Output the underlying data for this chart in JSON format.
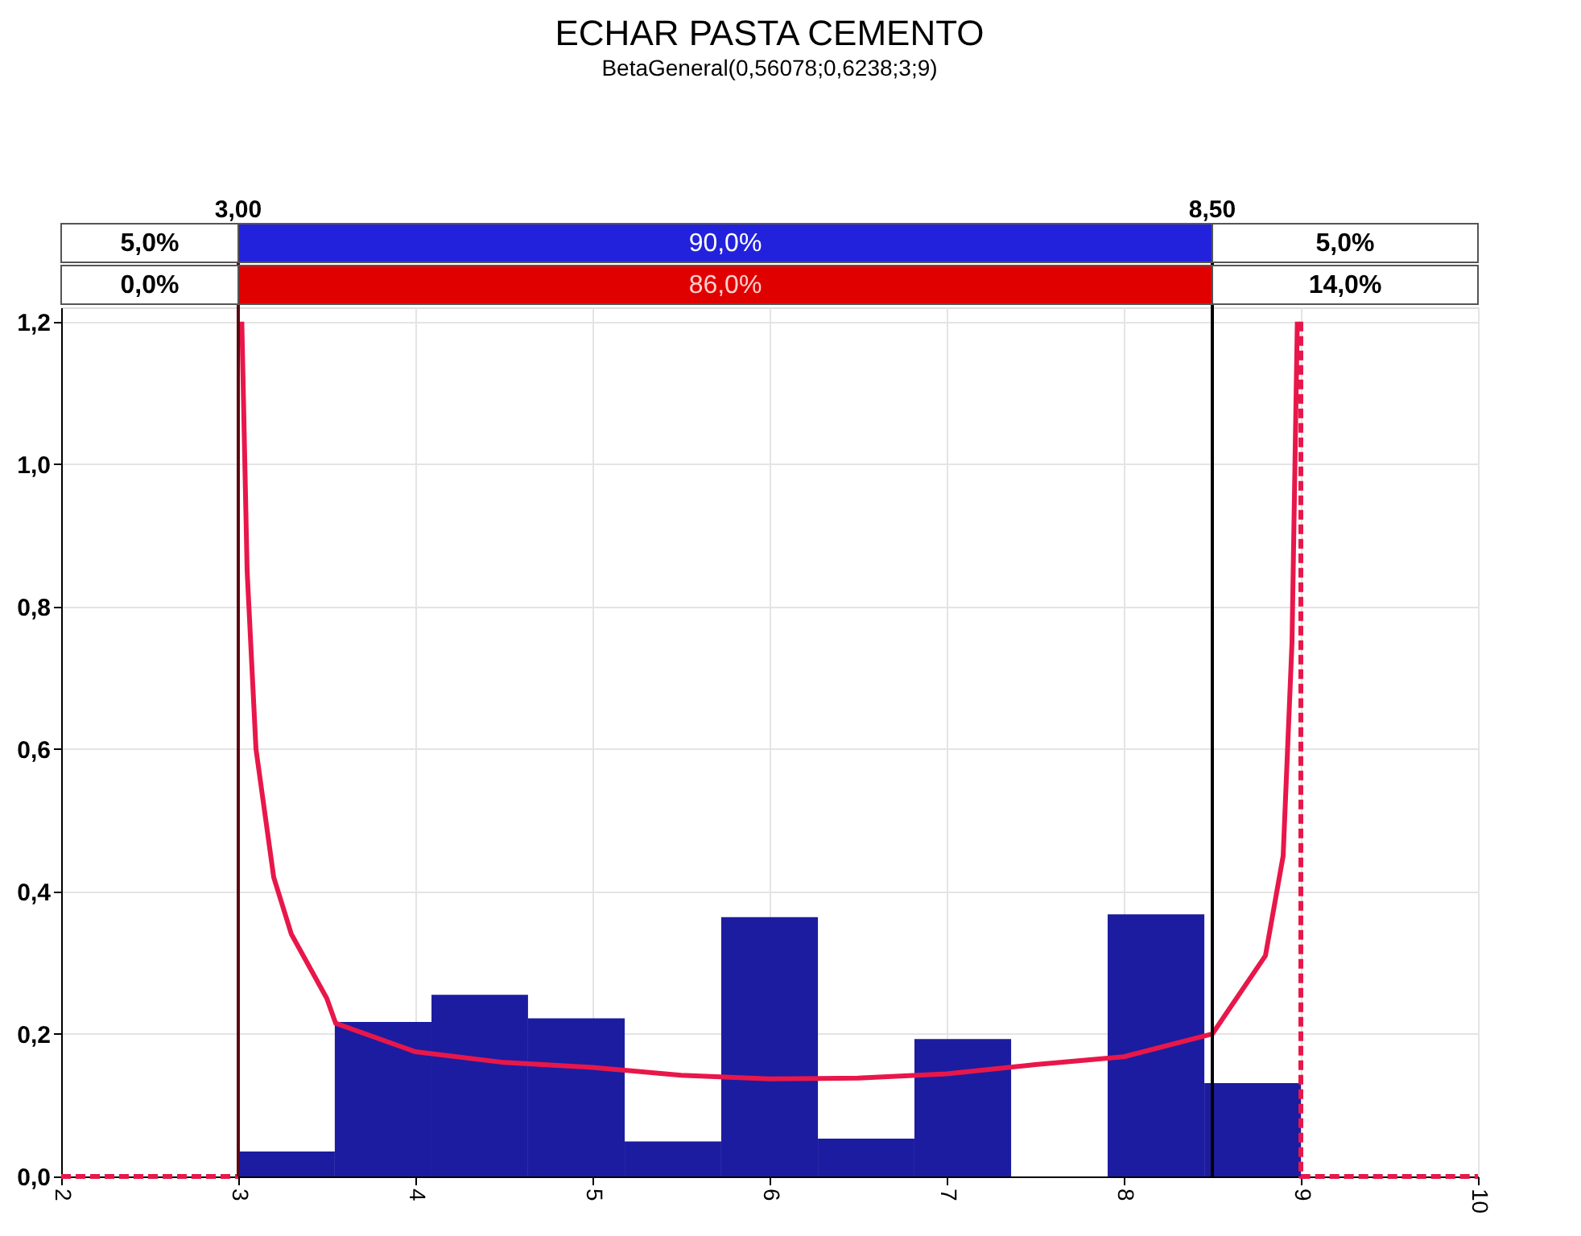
{
  "chart_data": {
    "type": "histogram",
    "title": "ECHAR PASTA CEMENTO",
    "subtitle": "BetaGeneral(0,56078;0,6238;3;9)",
    "bins": [
      3,
      3.545,
      4.091,
      4.636,
      5.182,
      5.727,
      6.273,
      6.818,
      7.364,
      7.909,
      8.455,
      9
    ],
    "values": [
      0.035,
      0.217,
      0.255,
      0.222,
      0.049,
      0.364,
      0.053,
      0.193,
      0,
      0.368,
      0.131
    ],
    "color": "#1c1ca0",
    "series": [
      {
        "type": "line",
        "color": "#e8174a",
        "line_style": "solid",
        "x": [
          3.02,
          3.05,
          3.1,
          3.2,
          3.3,
          3.5,
          3.55,
          4,
          4.5,
          5,
          5.5,
          6,
          6.5,
          7,
          7.5,
          8,
          8.5,
          8.8,
          8.9,
          8.95,
          8.98
        ],
        "values": [
          1.2,
          0.85,
          0.6,
          0.42,
          0.34,
          0.25,
          0.215,
          0.175,
          0.16,
          0.153,
          0.142,
          0.137,
          0.138,
          0.144,
          0.157,
          0.168,
          0.2,
          0.31,
          0.45,
          0.75,
          1.2
        ]
      },
      {
        "type": "line",
        "color": "#e8174a",
        "line_style": "dashed",
        "x": [
          9,
          9,
          10
        ],
        "values": [
          1.2,
          0,
          0
        ]
      },
      {
        "type": "line",
        "color": "#e8174a",
        "line_style": "dashed",
        "x": [
          2,
          3
        ],
        "values": [
          0,
          0
        ]
      }
    ],
    "xlim": [
      2,
      10
    ],
    "xticks": [
      2,
      3,
      4,
      5,
      6,
      7,
      8,
      9,
      10
    ],
    "ylim": [
      0,
      1.22
    ],
    "yticks": [
      {
        "value": 0,
        "label": "0,0"
      },
      {
        "value": 0.2,
        "label": "0,2"
      },
      {
        "value": 0.4,
        "label": "0,4"
      },
      {
        "value": 0.6,
        "label": "0,6"
      },
      {
        "value": 0.8,
        "label": "0,8"
      },
      {
        "value": 1.0,
        "label": "1,0"
      },
      {
        "value": 1.2,
        "label": "1,2"
      }
    ],
    "ref_lines": [
      {
        "axis": "x",
        "value": 3,
        "label": "3,00",
        "color": "#5a0a14"
      },
      {
        "axis": "x",
        "value": 8.5,
        "label": "8,50",
        "color": "#000000"
      }
    ],
    "annotations": [
      "5,0%",
      "90,0%",
      "5,0%",
      "0,0%",
      "86,0%",
      "14,0%"
    ],
    "grid": true
  }
}
